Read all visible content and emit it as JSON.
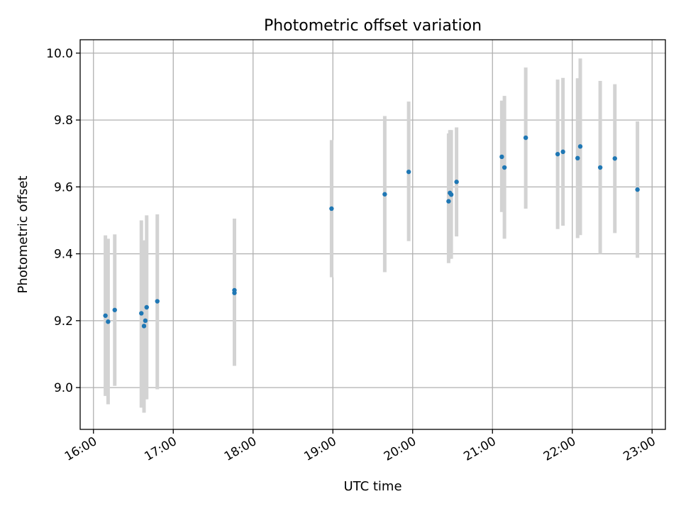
{
  "chart_data": {
    "type": "scatter",
    "title": "Photometric offset variation",
    "xlabel": "UTC time",
    "ylabel": "Photometric offset",
    "x_axis_kind": "time",
    "xlim": [
      "15:50",
      "23:10"
    ],
    "ylim": [
      8.875,
      10.04
    ],
    "x_ticks": [
      "16:00",
      "17:00",
      "18:00",
      "19:00",
      "20:00",
      "21:00",
      "22:00",
      "23:00"
    ],
    "y_ticks": [
      9.0,
      9.2,
      9.4,
      9.6,
      9.8,
      10.0
    ],
    "y_tick_labels": [
      "9.0",
      "9.2",
      "9.4",
      "9.6",
      "9.8",
      "10.0"
    ],
    "grid": true,
    "colors": {
      "point": "#1f77b4",
      "errorbar": "#d3d3d3"
    },
    "points": [
      {
        "t": "16:09",
        "y": 9.215,
        "lo": 8.975,
        "hi": 9.455
      },
      {
        "t": "16:11",
        "y": 9.197,
        "lo": 8.95,
        "hi": 9.445
      },
      {
        "t": "16:16",
        "y": 9.232,
        "lo": 9.005,
        "hi": 9.458
      },
      {
        "t": "16:36",
        "y": 9.222,
        "lo": 8.94,
        "hi": 9.5
      },
      {
        "t": "16:38",
        "y": 9.184,
        "lo": 8.925,
        "hi": 9.44
      },
      {
        "t": "16:39",
        "y": 9.2,
        "lo": 8.965,
        "hi": 9.44
      },
      {
        "t": "16:40",
        "y": 9.24,
        "lo": 8.965,
        "hi": 9.515
      },
      {
        "t": "16:48",
        "y": 9.258,
        "lo": 8.995,
        "hi": 9.518
      },
      {
        "t": "17:46",
        "y": 9.283,
        "lo": 9.065,
        "hi": 9.505
      },
      {
        "t": "17:46",
        "y": 9.291,
        "lo": 9.07,
        "hi": 9.505
      },
      {
        "t": "18:59",
        "y": 9.535,
        "lo": 9.33,
        "hi": 9.74
      },
      {
        "t": "19:39",
        "y": 9.578,
        "lo": 9.345,
        "hi": 9.812
      },
      {
        "t": "19:57",
        "y": 9.645,
        "lo": 9.438,
        "hi": 9.855
      },
      {
        "t": "20:27",
        "y": 9.557,
        "lo": 9.372,
        "hi": 9.76
      },
      {
        "t": "20:28",
        "y": 9.582,
        "lo": 9.385,
        "hi": 9.77
      },
      {
        "t": "20:29",
        "y": 9.577,
        "lo": 9.385,
        "hi": 9.77
      },
      {
        "t": "20:33",
        "y": 9.615,
        "lo": 9.452,
        "hi": 9.778
      },
      {
        "t": "21:07",
        "y": 9.69,
        "lo": 9.525,
        "hi": 9.858
      },
      {
        "t": "21:09",
        "y": 9.658,
        "lo": 9.445,
        "hi": 9.872
      },
      {
        "t": "21:25",
        "y": 9.747,
        "lo": 9.535,
        "hi": 9.957
      },
      {
        "t": "21:49",
        "y": 9.698,
        "lo": 9.474,
        "hi": 9.921
      },
      {
        "t": "21:53",
        "y": 9.705,
        "lo": 9.484,
        "hi": 9.926
      },
      {
        "t": "22:04",
        "y": 9.686,
        "lo": 9.447,
        "hi": 9.925
      },
      {
        "t": "22:06",
        "y": 9.721,
        "lo": 9.456,
        "hi": 9.984
      },
      {
        "t": "22:21",
        "y": 9.658,
        "lo": 9.4,
        "hi": 9.917
      },
      {
        "t": "22:32",
        "y": 9.685,
        "lo": 9.462,
        "hi": 9.907
      },
      {
        "t": "22:49",
        "y": 9.592,
        "lo": 9.388,
        "hi": 9.796
      }
    ]
  }
}
